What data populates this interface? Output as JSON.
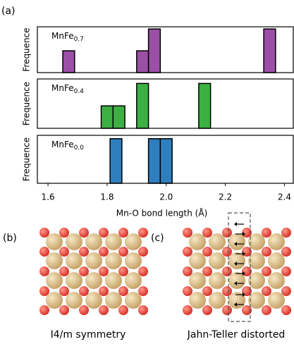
{
  "labels": {
    "a": "(a)",
    "b": "(b)",
    "c": "(c)"
  },
  "captions": {
    "b": "I4/m symmetry",
    "c": "Jahn-Teller distorted"
  },
  "chart_data": [
    {
      "type": "bar",
      "label": {
        "base": "MnFe",
        "sub": "0.7"
      },
      "ylabel": "Frequence",
      "color": "#9b4fa5",
      "x": [
        1.67,
        1.92,
        1.96,
        2.35
      ],
      "values": [
        1,
        1,
        2,
        2
      ],
      "bar_width": 0.04,
      "xlim": [
        1.564,
        2.43
      ],
      "ylim": [
        0,
        2.1
      ]
    },
    {
      "type": "bar",
      "label": {
        "base": "MnFe",
        "sub": "0.4"
      },
      "ylabel": "Frequence",
      "color": "#3cb043",
      "x": [
        1.8,
        1.84,
        1.92,
        2.13
      ],
      "values": [
        1,
        1,
        2,
        2
      ],
      "bar_width": 0.04,
      "xlim": [
        1.564,
        2.43
      ],
      "ylim": [
        0,
        2.2
      ]
    },
    {
      "type": "bar",
      "label": {
        "base": "MnFe",
        "sub": "0.0"
      },
      "ylabel": "Frequence",
      "color": "#2f7fbf",
      "x": [
        1.83,
        1.96,
        2.0
      ],
      "values": [
        2,
        2,
        2
      ],
      "bar_width": 0.04,
      "xlim": [
        1.564,
        2.43
      ],
      "ylim": [
        0,
        2.15
      ],
      "xlabel": "Mn-O bond length (Å)",
      "xticks": [
        1.6,
        1.8,
        {
          "value": 2,
          "label": "2.0"
        },
        2.2,
        2.4
      ]
    }
  ]
}
